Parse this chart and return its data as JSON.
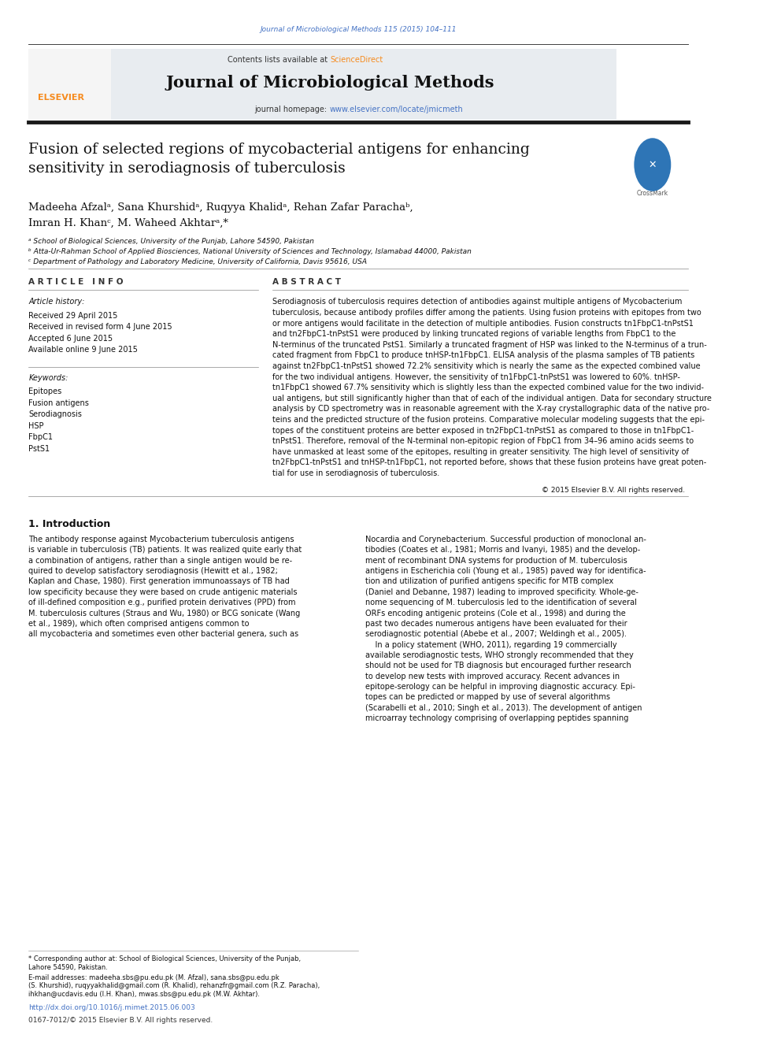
{
  "page_width": 9.92,
  "page_height": 13.23,
  "bg_color": "#ffffff",
  "journal_ref": "Journal of Microbiological Methods 115 (2015) 104–111",
  "journal_ref_color": "#4472c4",
  "journal_title": "Journal of Microbiological Methods",
  "contents_line": "Contents lists available at ",
  "sciencedirect": "ScienceDirect",
  "sciencedirect_color": "#f68b1e",
  "journal_homepage_prefix": "journal homepage: ",
  "journal_homepage_url": "www.elsevier.com/locate/jmicmeth",
  "journal_homepage_color": "#4472c4",
  "header_bg": "#e8ecf0",
  "paper_title": "Fusion of selected regions of mycobacterial antigens for enhancing\nsensitivity in serodiagnosis of tuberculosis",
  "authors_line1": "Madeeha Afzalᵃ, Sana Khurshidᵃ, Ruqyya Khalidᵃ, Rehan Zafar Parachaᵇ,",
  "authors_line2": "Imran H. Khanᶜ, M. Waheed Akhtarᵃ,*",
  "affil_a": "ᵃ School of Biological Sciences, University of the Punjab, Lahore 54590, Pakistan",
  "affil_b": "ᵇ Atta-Ur-Rahman School of Applied Biosciences, National University of Sciences and Technology, Islamabad 44000, Pakistan",
  "affil_c": "ᶜ Department of Pathology and Laboratory Medicine, University of California, Davis 95616, USA",
  "article_info_label": "A R T I C L E   I N F O",
  "abstract_label": "A B S T R A C T",
  "article_history_label": "Article history:",
  "received": "Received 29 April 2015",
  "received_revised": "Received in revised form 4 June 2015",
  "accepted": "Accepted 6 June 2015",
  "available": "Available online 9 June 2015",
  "keywords_label": "Keywords:",
  "keywords": [
    "Epitopes",
    "Fusion antigens",
    "Serodiagnosis",
    "HSP",
    "FbpC1",
    "PstS1"
  ],
  "copyright": "© 2015 Elsevier B.V. All rights reserved.",
  "intro_heading": "1. Introduction",
  "doi_text": "http://dx.doi.org/10.1016/j.mimet.2015.06.003",
  "doi_color": "#4472c4",
  "issn_text": "0167-7012/© 2015 Elsevier B.V. All rights reserved.",
  "separator_color": "#404040",
  "thick_bar_color": "#1a1a1a"
}
